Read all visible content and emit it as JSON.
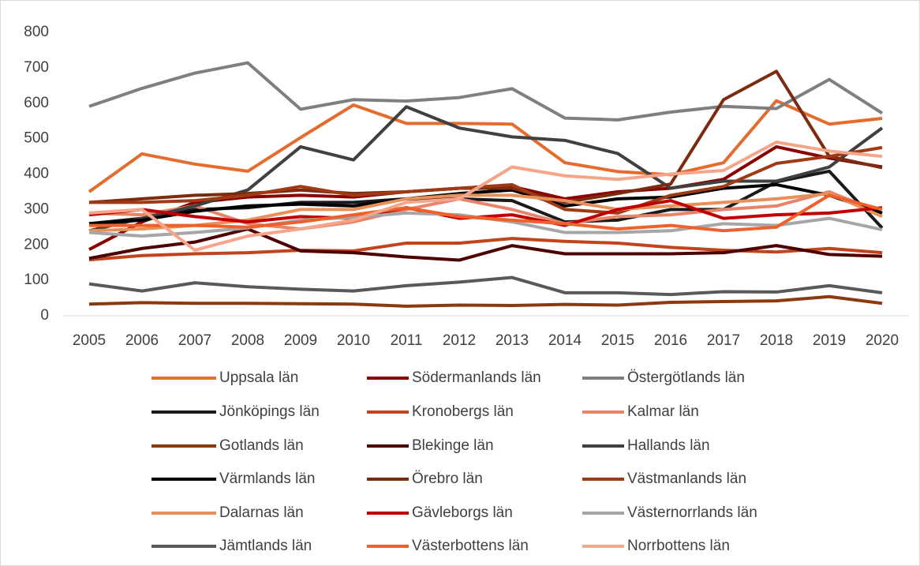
{
  "chart_data": {
    "type": "line",
    "categories": [
      "2005",
      "2006",
      "2007",
      "2008",
      "2009",
      "2010",
      "2011",
      "2012",
      "2013",
      "2014",
      "2015",
      "2016",
      "2017",
      "2018",
      "2019",
      "2020"
    ],
    "ylim": [
      0,
      800
    ],
    "yticks": [
      0,
      100,
      200,
      300,
      400,
      500,
      600,
      700,
      800
    ],
    "grid": false,
    "legend": "bottom",
    "series": [
      {
        "name": "Uppsala län",
        "color": "#e46c2e",
        "values": [
          350,
          457,
          428,
          408,
          503,
          595,
          543,
          543,
          541,
          432,
          407,
          398,
          432,
          607,
          541,
          557
        ]
      },
      {
        "name": "Södermanlands län",
        "color": "#8b0000",
        "values": [
          187,
          265,
          320,
          335,
          340,
          335,
          350,
          360,
          365,
          330,
          350,
          360,
          385,
          477,
          445,
          420
        ]
      },
      {
        "name": "Östergötlands län",
        "color": "#7f7f7f",
        "values": [
          591,
          642,
          685,
          714,
          583,
          610,
          606,
          616,
          641,
          558,
          553,
          575,
          591,
          585,
          667,
          572
        ]
      },
      {
        "name": "Jönköpings län",
        "color": "#1a1a1a",
        "values": [
          260,
          275,
          300,
          305,
          320,
          320,
          330,
          330,
          325,
          265,
          270,
          300,
          300,
          378,
          408,
          248
        ]
      },
      {
        "name": "Kronobergs län",
        "color": "#c0441c",
        "values": [
          158,
          170,
          175,
          178,
          185,
          183,
          205,
          205,
          218,
          210,
          205,
          193,
          185,
          180,
          190,
          178
        ]
      },
      {
        "name": "Kalmar län",
        "color": "#e8846a",
        "values": [
          290,
          285,
          310,
          260,
          245,
          265,
          300,
          330,
          300,
          260,
          280,
          285,
          300,
          310,
          350,
          290
        ]
      },
      {
        "name": "Gotlands län",
        "color": "#8b3a10",
        "values": [
          33,
          37,
          35,
          35,
          34,
          33,
          27,
          30,
          29,
          32,
          30,
          38,
          40,
          42,
          54,
          35
        ]
      },
      {
        "name": "Blekinge län",
        "color": "#4d0000",
        "values": [
          162,
          190,
          208,
          245,
          183,
          178,
          166,
          157,
          198,
          175,
          175,
          175,
          178,
          198,
          173,
          168
        ]
      },
      {
        "name": "Hallands län",
        "color": "#404040",
        "values": [
          240,
          275,
          310,
          355,
          477,
          440,
          590,
          530,
          505,
          495,
          458,
          360,
          380,
          380,
          420,
          530
        ]
      },
      {
        "name": "Värmlands län",
        "color": "#000000",
        "values": [
          260,
          270,
          295,
          310,
          315,
          310,
          330,
          345,
          355,
          310,
          330,
          335,
          360,
          370,
          340,
          290
        ]
      },
      {
        "name": "Örebro län",
        "color": "#7b2c10",
        "values": [
          320,
          330,
          340,
          345,
          355,
          345,
          350,
          360,
          360,
          320,
          345,
          372,
          610,
          690,
          450,
          418
        ]
      },
      {
        "name": "Västmanlands län",
        "color": "#a03a14",
        "values": [
          320,
          320,
          325,
          340,
          365,
          340,
          350,
          360,
          370,
          300,
          290,
          340,
          365,
          430,
          450,
          475
        ]
      },
      {
        "name": "Dalarnas län",
        "color": "#e8905a",
        "values": [
          240,
          245,
          255,
          270,
          300,
          300,
          330,
          340,
          340,
          325,
          300,
          310,
          320,
          330,
          345,
          280
        ]
      },
      {
        "name": "Gävleborgs län",
        "color": "#c00000",
        "values": [
          285,
          300,
          280,
          265,
          280,
          275,
          305,
          275,
          285,
          255,
          300,
          325,
          275,
          285,
          290,
          305
        ]
      },
      {
        "name": "Västernorrlands län",
        "color": "#a6a6a6",
        "values": [
          235,
          225,
          235,
          248,
          270,
          278,
          290,
          285,
          265,
          235,
          235,
          240,
          260,
          255,
          275,
          243
        ]
      },
      {
        "name": "Jämtlands län",
        "color": "#595959",
        "values": [
          90,
          70,
          93,
          82,
          75,
          70,
          85,
          95,
          108,
          65,
          65,
          60,
          68,
          67,
          85,
          65
        ]
      },
      {
        "name": "Västerbottens län",
        "color": "#f0602a",
        "values": [
          255,
          255,
          255,
          250,
          265,
          285,
          305,
          280,
          270,
          260,
          245,
          255,
          240,
          250,
          340,
          300
        ]
      },
      {
        "name": "Norrbottens län",
        "color": "#f4a58a",
        "values": [
          290,
          300,
          185,
          225,
          245,
          270,
          320,
          330,
          420,
          395,
          385,
          400,
          410,
          490,
          465,
          450
        ]
      }
    ]
  }
}
